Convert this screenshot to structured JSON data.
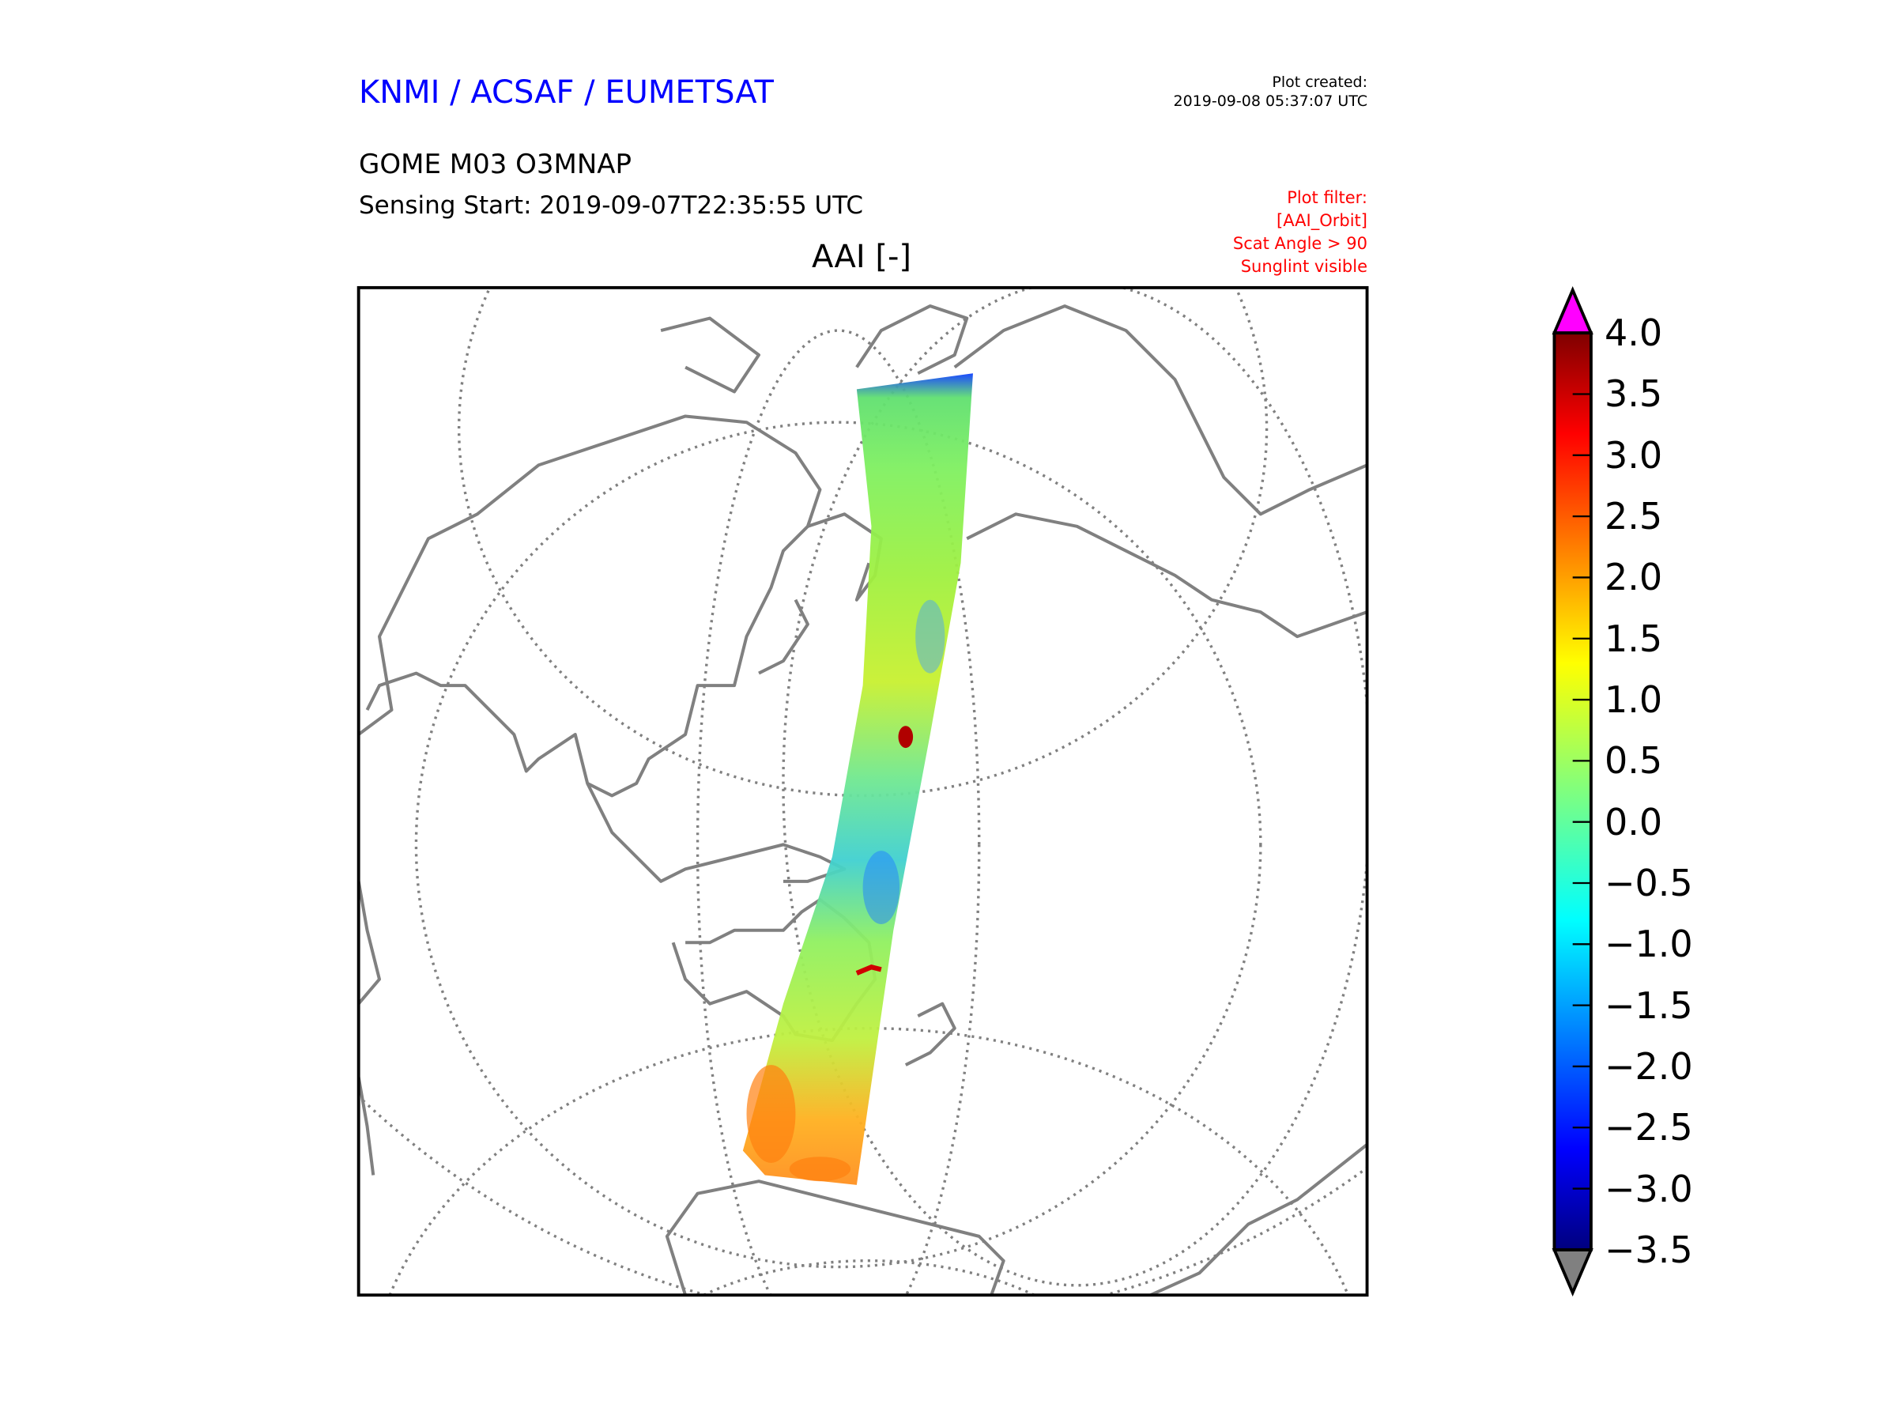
{
  "header": {
    "organization": "KNMI / ACSAF / EUMETSAT",
    "created_label": "Plot created:",
    "created_value": "2019-09-08 05:37:07 UTC",
    "product": "GOME M03 O3MNAP",
    "sensing_start": "Sensing Start: 2019-09-07T22:35:55 UTC",
    "filter_lines": [
      "Plot filter:",
      "[AAI_Orbit]",
      "Scat Angle > 90",
      "Sunglint visible"
    ]
  },
  "plot": {
    "title": "AAI [-]",
    "colors": {
      "coastline": "#808080",
      "graticule": "#808080",
      "over": "#ff00ff",
      "under": "#808080"
    }
  },
  "colorbar": {
    "min": -3.5,
    "max": 4.0,
    "ticks": [
      "4.0",
      "3.5",
      "3.0",
      "2.5",
      "2.0",
      "1.5",
      "1.0",
      "0.5",
      "0.0",
      "−0.5",
      "−1.0",
      "−1.5",
      "−2.0",
      "−2.5",
      "−3.0",
      "−3.5"
    ],
    "tick_values": [
      4.0,
      3.5,
      3.0,
      2.5,
      2.0,
      1.5,
      1.0,
      0.5,
      0.0,
      -0.5,
      -1.0,
      -1.5,
      -2.0,
      -2.5,
      -3.0,
      -3.5
    ],
    "colormap": "jet"
  }
}
